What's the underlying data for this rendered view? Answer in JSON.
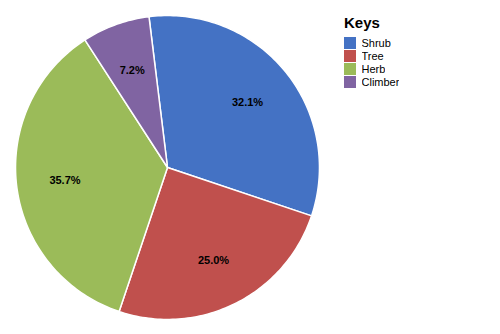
{
  "chart_data": {
    "type": "pie",
    "categories": [
      "Shrub",
      "Tree",
      "Herb",
      "Climber"
    ],
    "values": [
      32.1,
      25.0,
      35.7,
      7.2
    ],
    "value_labels": [
      "32.1%",
      "25.0%",
      "35.7%",
      "7.2%"
    ],
    "colors": [
      "#4472C4",
      "#C0504D",
      "#9BBB59",
      "#8064A2"
    ],
    "legend_title": "Keys",
    "legend": "upper right",
    "data_labels": true
  }
}
